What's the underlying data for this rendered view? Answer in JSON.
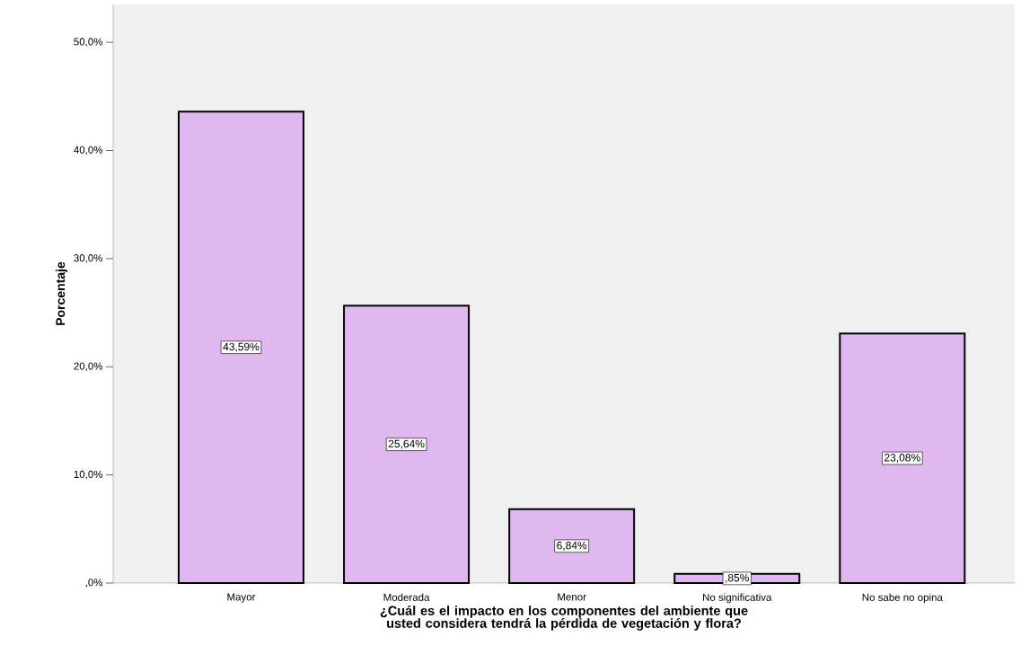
{
  "chart_data": {
    "type": "bar",
    "categories": [
      "Mayor",
      "Moderada",
      "Menor",
      "No significativa",
      "No sabe no opina"
    ],
    "values": [
      43.59,
      25.64,
      6.84,
      0.85,
      23.08
    ],
    "value_labels": [
      "43,59%",
      "25,64%",
      "6,84%",
      ",85%",
      "23,08%"
    ],
    "color": "#dfb8f0",
    "ylim": [
      0,
      53.5
    ],
    "yticks": [
      {
        "value": 0,
        "label": ",0%"
      },
      {
        "value": 10,
        "label": "10,0%"
      },
      {
        "value": 20,
        "label": "20,0%"
      },
      {
        "value": 30,
        "label": "30,0%"
      },
      {
        "value": 40,
        "label": "40,0%"
      },
      {
        "value": 50,
        "label": "50,0%"
      }
    ],
    "xlabel": "¿Cuál es el impacto en los componentes del ambiente que usted considera tendrá la pérdida de vegetación y flora?",
    "ylabel": "Porcentaje"
  }
}
